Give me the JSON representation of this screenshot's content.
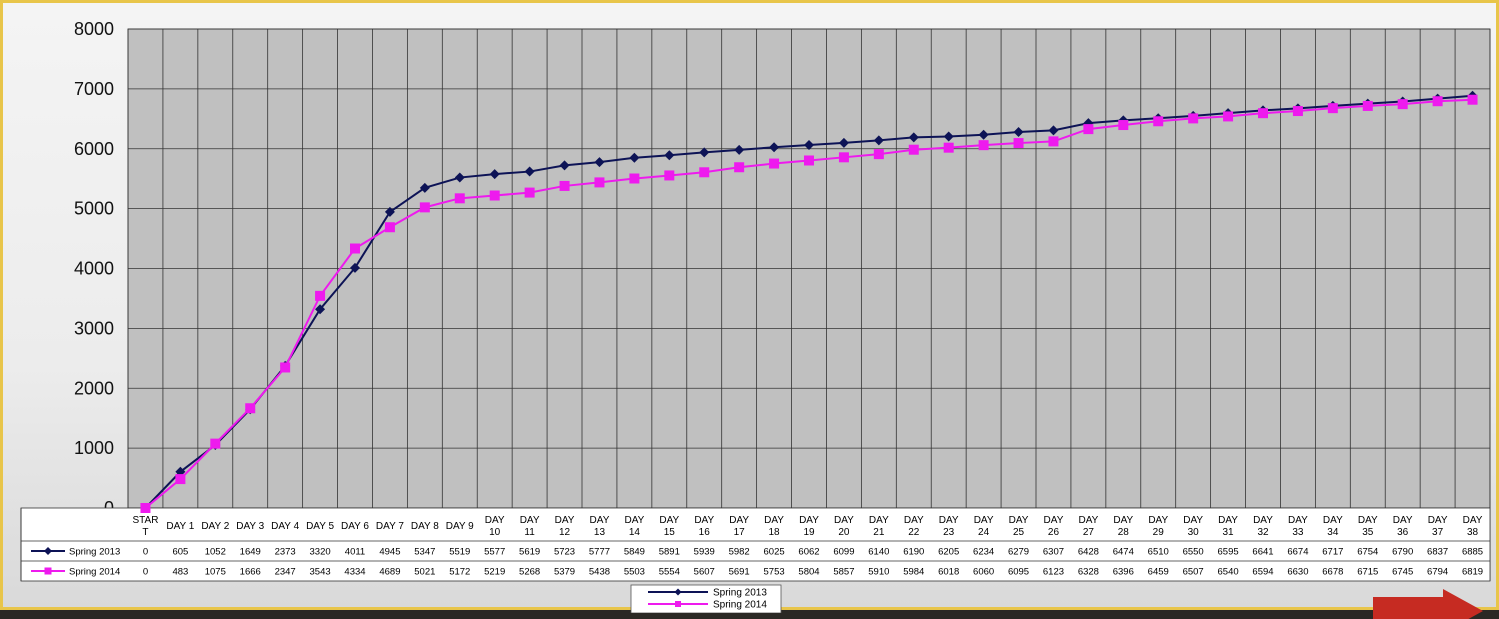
{
  "chart_data": {
    "type": "line",
    "categories": [
      [
        "STAR",
        "T"
      ],
      [
        "DAY 1"
      ],
      [
        "DAY 2"
      ],
      [
        "DAY 3"
      ],
      [
        "DAY 4"
      ],
      [
        "DAY 5"
      ],
      [
        "DAY 6"
      ],
      [
        "DAY 7"
      ],
      [
        "DAY 8"
      ],
      [
        "DAY 9"
      ],
      [
        "DAY",
        "10"
      ],
      [
        "DAY",
        "11"
      ],
      [
        "DAY",
        "12"
      ],
      [
        "DAY",
        "13"
      ],
      [
        "DAY",
        "14"
      ],
      [
        "DAY",
        "15"
      ],
      [
        "DAY",
        "16"
      ],
      [
        "DAY",
        "17"
      ],
      [
        "DAY",
        "18"
      ],
      [
        "DAY",
        "19"
      ],
      [
        "DAY",
        "20"
      ],
      [
        "DAY",
        "21"
      ],
      [
        "DAY",
        "22"
      ],
      [
        "DAY",
        "23"
      ],
      [
        "DAY",
        "24"
      ],
      [
        "DAY",
        "25"
      ],
      [
        "DAY",
        "26"
      ],
      [
        "DAY",
        "27"
      ],
      [
        "DAY",
        "28"
      ],
      [
        "DAY",
        "29"
      ],
      [
        "DAY",
        "30"
      ],
      [
        "DAY",
        "31"
      ],
      [
        "DAY",
        "32"
      ],
      [
        "DAY",
        "33"
      ],
      [
        "DAY",
        "34"
      ],
      [
        "DAY",
        "35"
      ],
      [
        "DAY",
        "36"
      ],
      [
        "DAY",
        "37"
      ],
      [
        "DAY",
        "38"
      ]
    ],
    "series": [
      {
        "name": "Spring 2013",
        "color": "#0d1356",
        "marker": "diamond",
        "values": [
          0,
          605,
          1052,
          1649,
          2373,
          3320,
          4011,
          4945,
          5347,
          5519,
          5577,
          5619,
          5723,
          5777,
          5849,
          5891,
          5939,
          5982,
          6025,
          6062,
          6099,
          6140,
          6190,
          6205,
          6234,
          6279,
          6307,
          6428,
          6474,
          6510,
          6550,
          6595,
          6641,
          6674,
          6717,
          6754,
          6790,
          6837,
          6885
        ]
      },
      {
        "name": "Spring 2014",
        "color": "#ee1aee",
        "marker": "square",
        "values": [
          0,
          483,
          1075,
          1666,
          2347,
          3543,
          4334,
          4689,
          5021,
          5172,
          5219,
          5268,
          5379,
          5438,
          5503,
          5554,
          5607,
          5691,
          5753,
          5804,
          5857,
          5910,
          5984,
          6018,
          6060,
          6095,
          6123,
          6328,
          6396,
          6459,
          6507,
          6540,
          6594,
          6630,
          6678,
          6715,
          6745,
          6794,
          6819
        ]
      }
    ],
    "ylim": [
      0,
      8000
    ],
    "yticks": [
      0,
      1000,
      2000,
      3000,
      4000,
      5000,
      6000,
      7000,
      8000
    ],
    "grid": true,
    "legend": "bottom-center",
    "data_table": true,
    "plot_background": "#c0c0c0"
  }
}
